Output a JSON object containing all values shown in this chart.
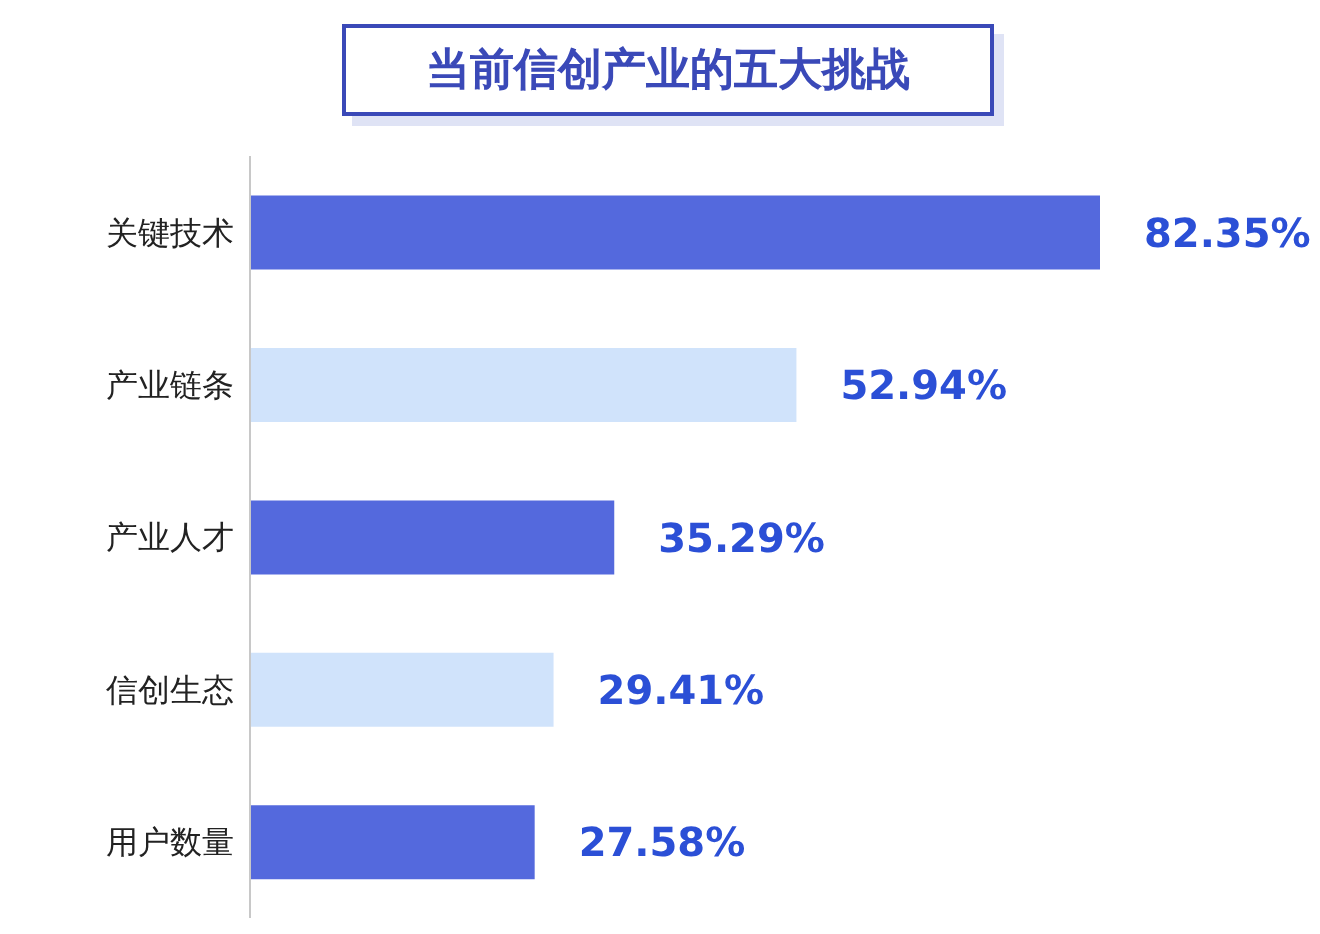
{
  "chart_data": {
    "type": "bar",
    "orientation": "horizontal",
    "title": "当前信创产业的五大挑战",
    "categories": [
      "关键技术",
      "产业链条",
      "产业人才",
      "信创生态",
      "用户数量"
    ],
    "values": [
      82.35,
      52.94,
      35.29,
      29.41,
      27.58
    ],
    "colors": [
      "#5469dd",
      "#d0e3fb",
      "#5469dd",
      "#d0e3fb",
      "#5469dd"
    ],
    "value_labels": [
      "82.35%",
      "52.94%",
      "35.29%",
      "29.41%",
      "27.58%"
    ],
    "grid": false,
    "legend": false
  }
}
